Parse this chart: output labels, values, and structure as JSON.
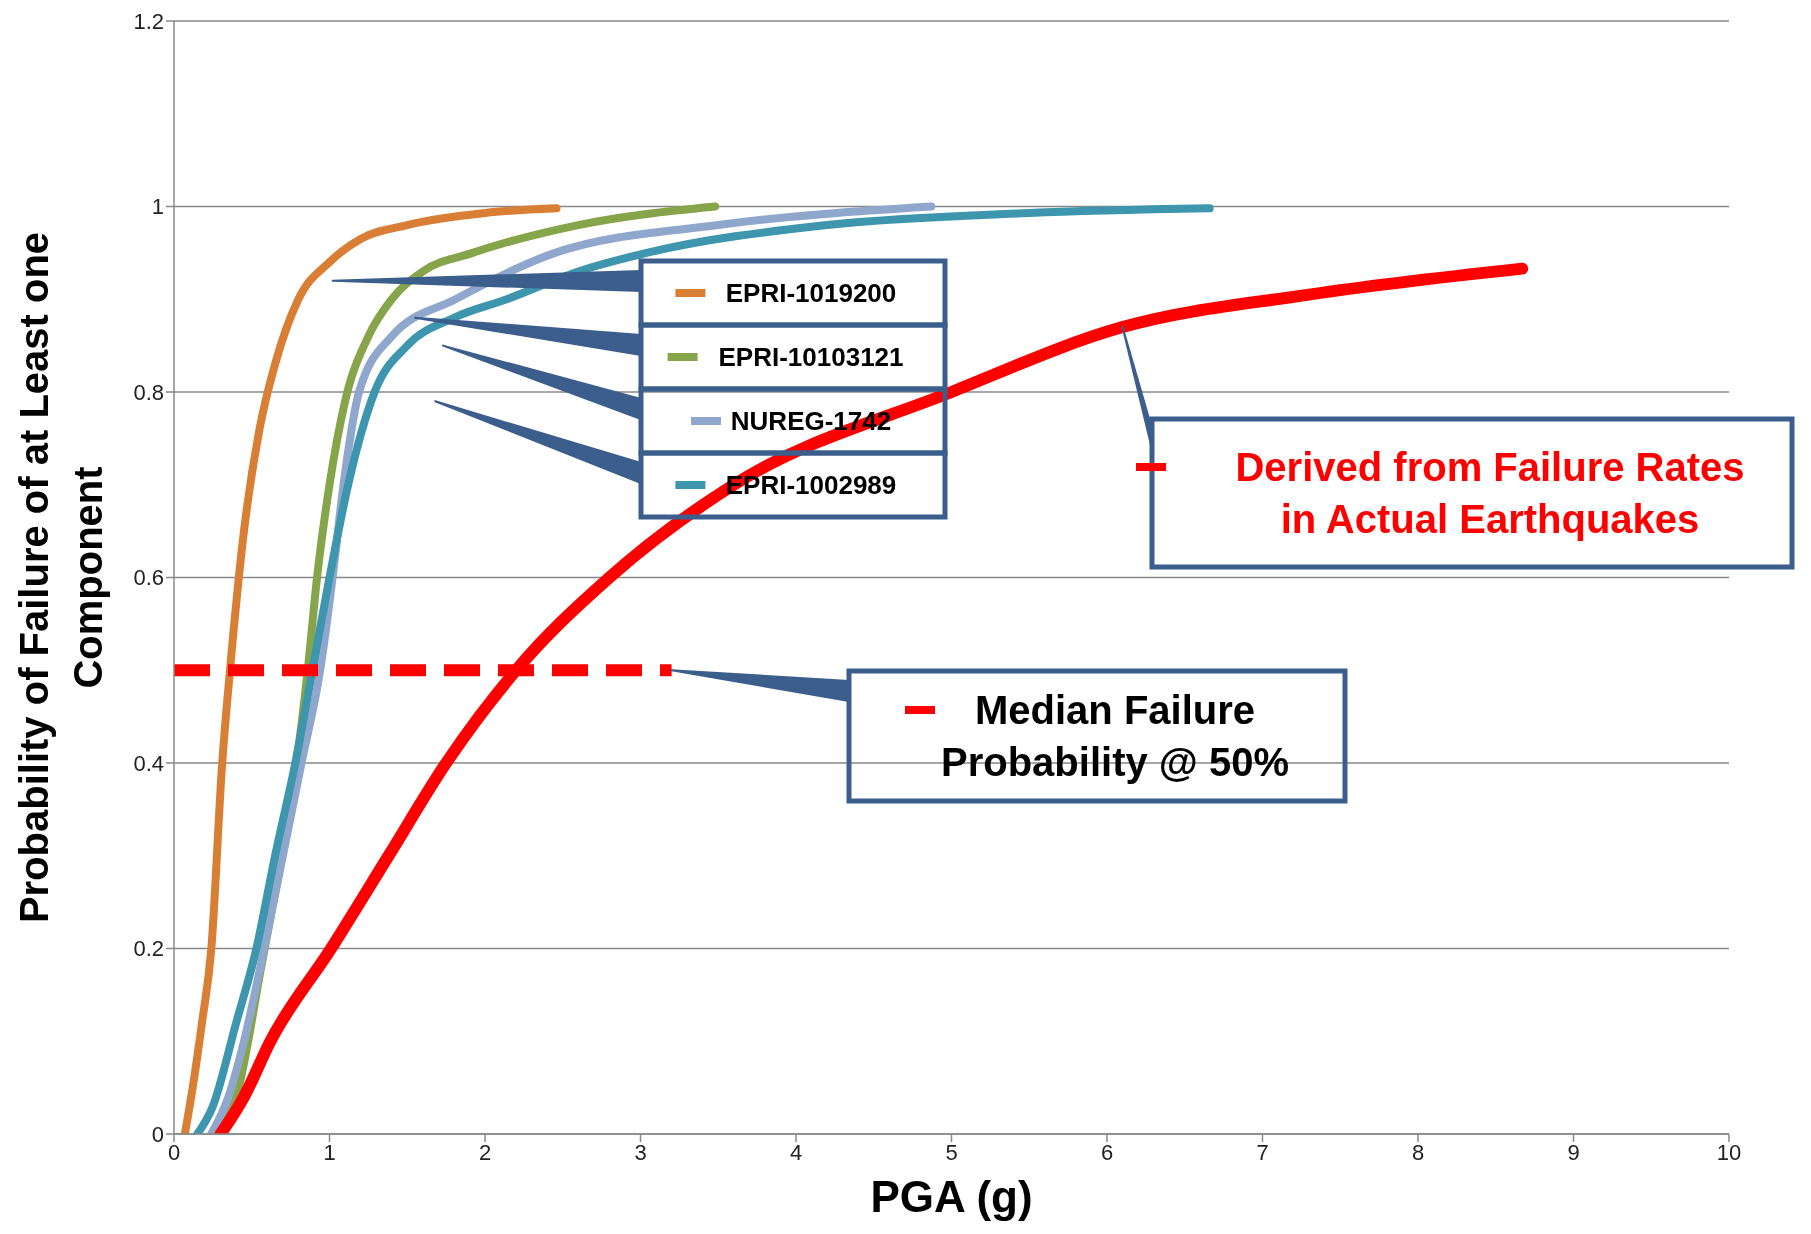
{
  "chart_data": {
    "type": "line",
    "xlabel": "PGA (g)",
    "ylabel": "Probability of Failure of at Least one Component",
    "xlim": [
      0,
      10
    ],
    "xticks": [
      0,
      1,
      2,
      3,
      4,
      5,
      6,
      7,
      8,
      9,
      10
    ],
    "ylim": [
      0,
      1.2
    ],
    "yticks": [
      0,
      0.2,
      0.4,
      0.6,
      0.8,
      1,
      1.2
    ],
    "grid": "y",
    "legend": "right",
    "line_style": "solid",
    "series": [
      {
        "name": "EPRI-1019200",
        "color": "#d97f35",
        "x": [
          0.07,
          0.12,
          0.18,
          0.24,
          0.31,
          0.36,
          0.45,
          0.55,
          0.65,
          0.8,
          1.0,
          1.2,
          1.5,
          2.0,
          2.46
        ],
        "values": [
          0,
          0.05,
          0.12,
          0.2,
          0.4,
          0.5,
          0.65,
          0.76,
          0.83,
          0.9,
          0.94,
          0.965,
          0.98,
          0.993,
          0.998
        ]
      },
      {
        "name": "EPRI-10103121",
        "color": "#86a54a",
        "x": [
          0.25,
          0.4,
          0.55,
          0.86,
          0.92,
          1.0,
          1.1,
          1.25,
          1.4,
          1.6,
          1.92,
          2.6,
          3.48
        ],
        "values": [
          0,
          0.04,
          0.17,
          0.5,
          0.6,
          0.7,
          0.79,
          0.86,
          0.9,
          0.93,
          0.95,
          0.98,
          1.0
        ]
      },
      {
        "name": "NUREG-1742",
        "color": "#8fa7cd",
        "x": [
          0.24,
          0.35,
          0.45,
          0.58,
          0.7,
          0.82,
          0.94,
          1.02,
          1.09,
          1.19,
          1.4,
          1.81,
          2.45,
          3.5,
          4.87
        ],
        "values": [
          0,
          0.04,
          0.1,
          0.2,
          0.3,
          0.4,
          0.5,
          0.6,
          0.7,
          0.8,
          0.86,
          0.9,
          0.95,
          0.98,
          1.0
        ]
      },
      {
        "name": "EPRI-1002989",
        "color": "#3d95ae",
        "x": [
          0.15,
          0.25,
          0.4,
          0.53,
          0.65,
          0.78,
          0.89,
          1.0,
          1.12,
          1.29,
          1.5,
          1.8,
          2.14,
          2.6,
          3.04,
          4.2,
          5.5,
          6.66
        ],
        "values": [
          0,
          0.03,
          0.12,
          0.2,
          0.3,
          0.4,
          0.5,
          0.6,
          0.7,
          0.8,
          0.85,
          0.88,
          0.9,
          0.93,
          0.95,
          0.98,
          0.993,
          0.998
        ]
      },
      {
        "name": "Derived from Failure Rates in Actual Earthquakes",
        "color": "#ff0000",
        "x": [
          0.3,
          0.45,
          0.62,
          1.01,
          1.38,
          1.75,
          2.2,
          2.8,
          3.6,
          5.0,
          6.1,
          7.3,
          8.67
        ],
        "values": [
          0,
          0.04,
          0.1,
          0.2,
          0.3,
          0.4,
          0.5,
          0.6,
          0.7,
          0.8,
          0.87,
          0.905,
          0.933
        ]
      },
      {
        "name": "Median Failure Probability @ 50%",
        "color": "#ff0000",
        "line_style": "dashed",
        "x": [
          0,
          3.2
        ],
        "values": [
          0.5,
          0.5
        ]
      }
    ]
  }
}
